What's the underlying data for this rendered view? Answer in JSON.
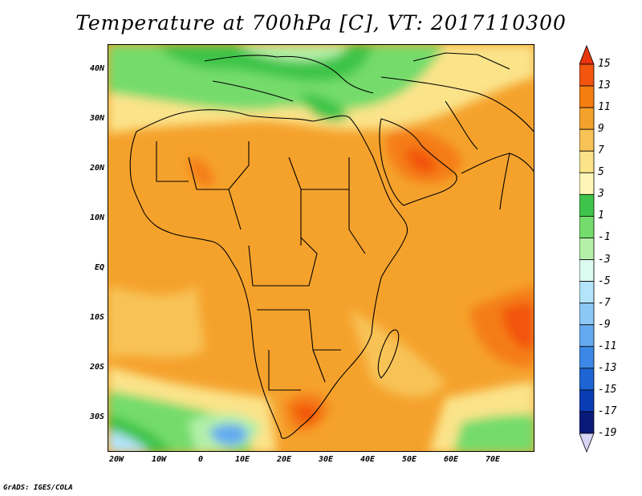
{
  "title": "Temperature at 700hPa [C], VT: 2017110300",
  "footer": "GrADS: IGES/COLA",
  "lat_labels": [
    "40N",
    "30N",
    "20N",
    "10N",
    "EQ",
    "10S",
    "20S",
    "30S"
  ],
  "lon_labels": [
    "20W",
    "10W",
    "0",
    "10E",
    "20E",
    "30E",
    "40E",
    "50E",
    "60E",
    "70E"
  ],
  "colorbar": {
    "labels": [
      "15",
      "13",
      "11",
      "9",
      "7",
      "5",
      "3",
      "1",
      "-1",
      "-3",
      "-5",
      "-7",
      "-9",
      "-11",
      "-13",
      "-15",
      "-17",
      "-19"
    ],
    "colors": [
      "#e8350c",
      "#f2550f",
      "#f57d12",
      "#f5a22c",
      "#f8c356",
      "#fbe38a",
      "#fdf6b8",
      "#3ec44a",
      "#74dc6c",
      "#b4f0a8",
      "#dcfaf0",
      "#b4e4fa",
      "#8cc8f5",
      "#64aaf0",
      "#3c88e6",
      "#1e64d2",
      "#0a3cb4",
      "#0a1a7a",
      "#d8d4f6"
    ],
    "end_colors": {
      "top": "#e8350c",
      "bottom": "#d8d4f6"
    }
  }
}
